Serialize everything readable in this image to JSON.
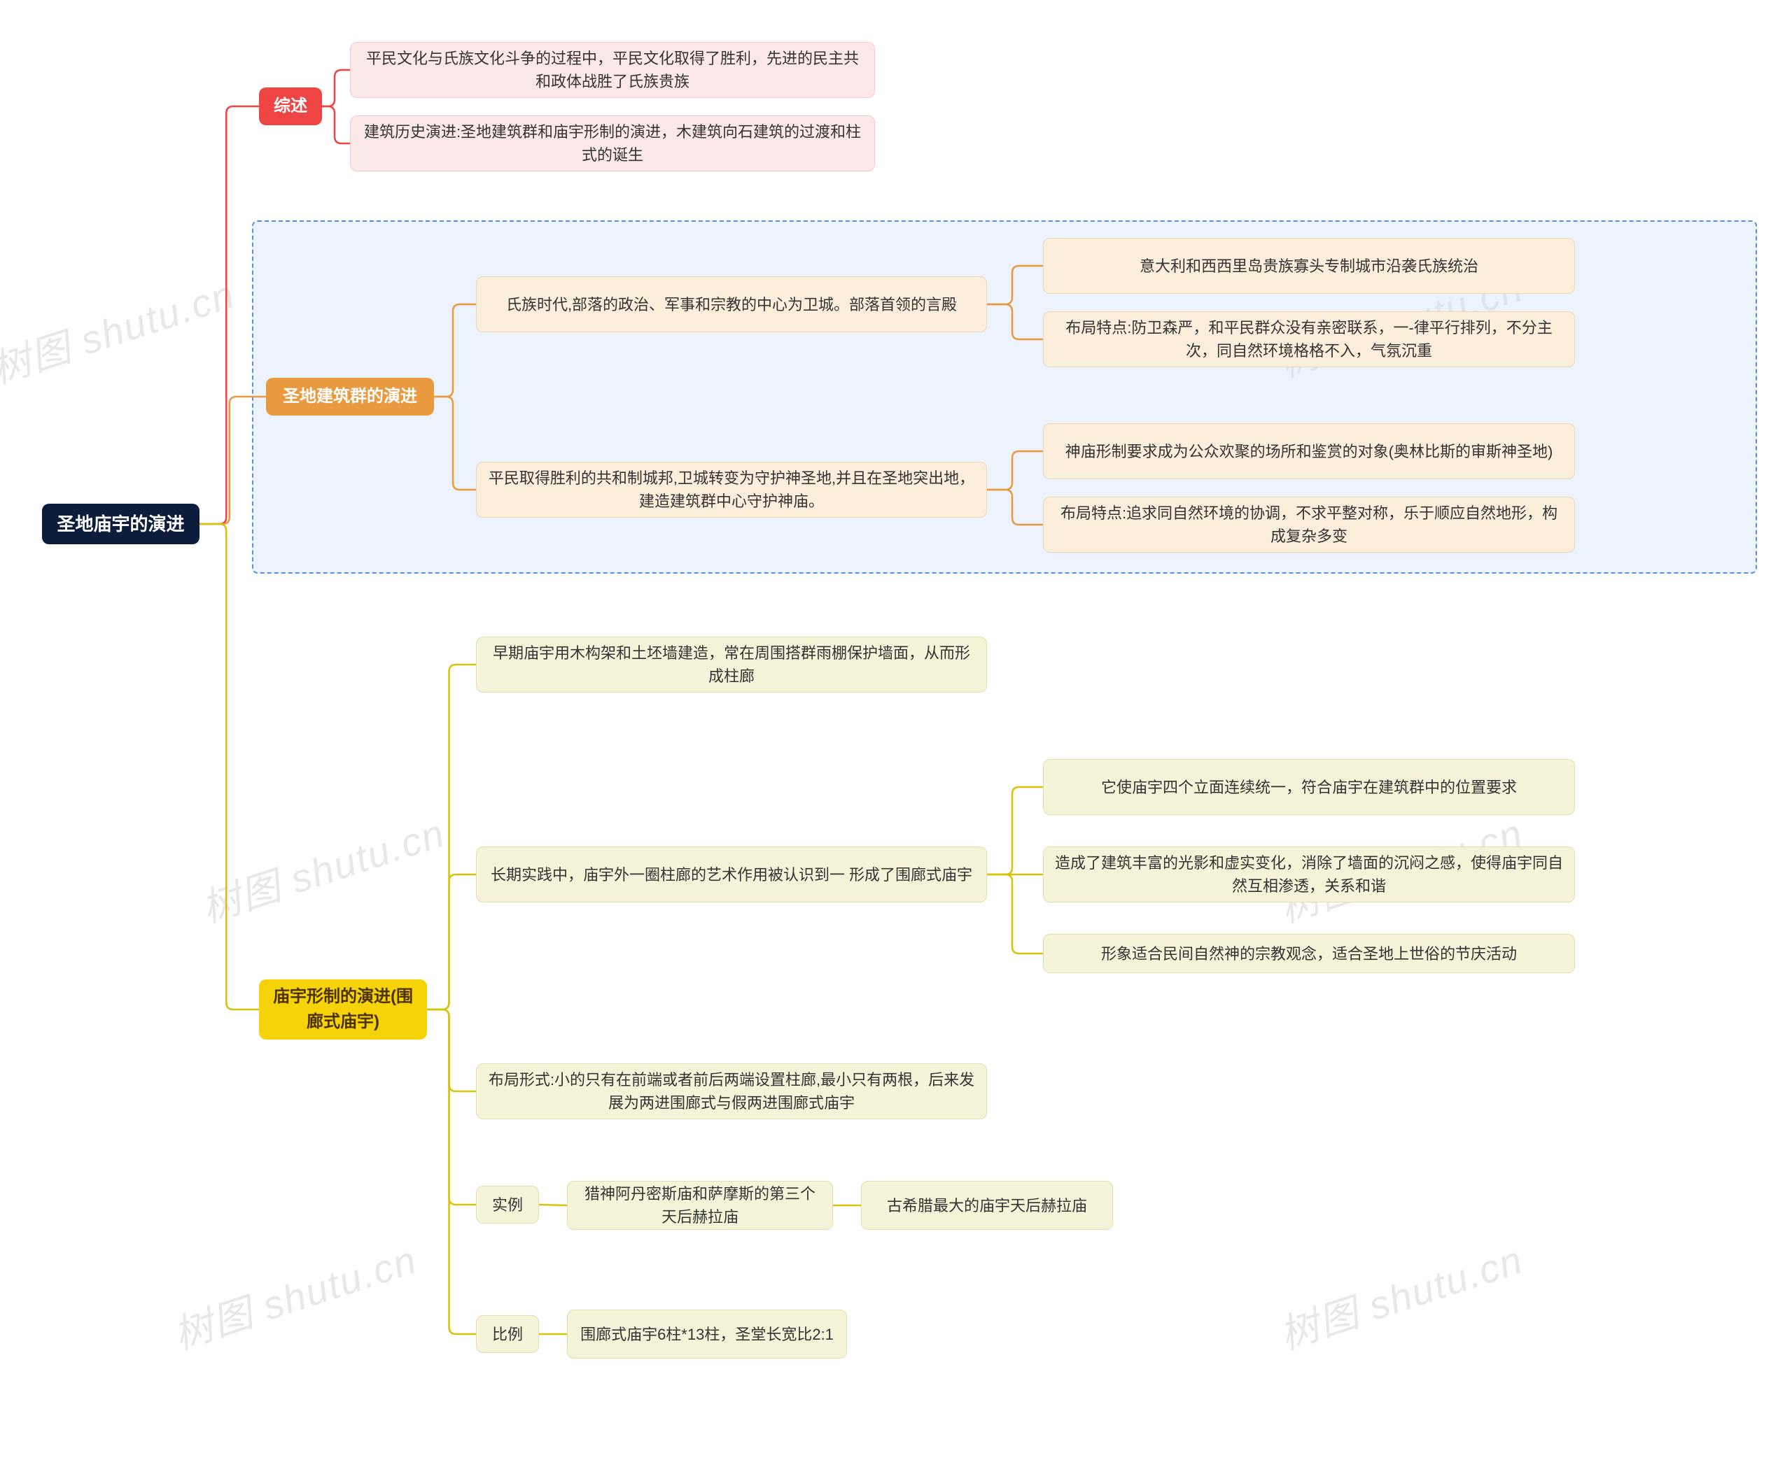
{
  "colors": {
    "root_bg": "#0b1d3a",
    "root_text": "#ffffff",
    "red_bg": "#ef4444",
    "orange_bg": "#ea9a3e",
    "yellow_bg": "#f5d308",
    "pink_bg": "#fce8e8",
    "pink_border": "#f3c9c9",
    "beige_bg": "#fbeedb",
    "beige_border": "#e9d8b8",
    "cream_bg": "#f5f3d8",
    "cream_border": "#e3e0b0",
    "highlight_border": "#5a8fe6",
    "highlight_fill": "rgba(200,222,250,0.35)",
    "red_line": "#ef4444",
    "orange_line": "#ea9a3e",
    "yellow_line": "#d9c20a",
    "watermark": "#e8e8e8",
    "page_bg": "#ffffff"
  },
  "fonts": {
    "root_size": 26,
    "branch_size": 24,
    "leaf_size": 22
  },
  "root": "圣地庙宇的演进",
  "watermark_text": "树图 shutu.cn",
  "branches": {
    "summary": {
      "label": "综述",
      "items": [
        "平民文化与氏族文化斗争的过程中，平民文化取得了胜利，先进的民主共和政体战胜了氏族贵族",
        "建筑历史演进:圣地建筑群和庙宇形制的演进，木建筑向石建筑的过渡和柱式的诞生"
      ]
    },
    "group": {
      "label": "圣地建筑群的演进",
      "clan": {
        "title": "氏族时代,部落的政治、军事和宗教的中心为卫城。部落首领的言殿",
        "items": [
          "意大利和西西里岛贵族寡头专制城市沿袭氏族统治",
          "布局特点:防卫森严，和平民群众没有亲密联系，一-律平行排列，不分主次，同自然环境格格不入，气氛沉重"
        ]
      },
      "commoner": {
        "title": "平民取得胜利的共和制城邦,卫城转变为守护神圣地,并且在圣地突出地，建造建筑群中心守护神庙。",
        "items": [
          "神庙形制要求成为公众欢聚的场所和鉴赏的对象(奥林比斯的审斯神圣地)",
          "布局特点:追求同自然环境的协调，不求平整对称，乐于顺应自然地形，构成复杂多变"
        ]
      }
    },
    "temple": {
      "label": "庙宇形制的演进(围廊式庙宇)",
      "early": "早期庙宇用木构架和土坯墙建造，常在周围搭群雨棚保护墙面，从而形成柱廊",
      "peristyle": {
        "title": "长期实践中，庙宇外一圈柱廊的艺术作用被认识到一 形成了围廊式庙宇",
        "items": [
          "它使庙宇四个立面连续统一，符合庙宇在建筑群中的位置要求",
          "造成了建筑丰富的光影和虚实变化，消除了墙面的沉闷之感，使得庙宇同自然互相渗透，关系和谐",
          "形象适合民间自然神的宗教观念，适合圣地上世俗的节庆活动"
        ]
      },
      "layout": "布局形式:小的只有在前端或者前后两端设置柱廊,最小只有两根，后来发展为两进围廊式与假两进围廊式庙宇",
      "examples": {
        "label": "实例",
        "items": [
          "猎神阿丹密斯庙和萨摩斯的第三个天后赫拉庙",
          "古希腊最大的庙宇天后赫拉庙"
        ]
      },
      "ratio": {
        "label": "比例",
        "value": "围廊式庙宇6柱*13柱，圣堂长宽比2:1"
      }
    }
  }
}
